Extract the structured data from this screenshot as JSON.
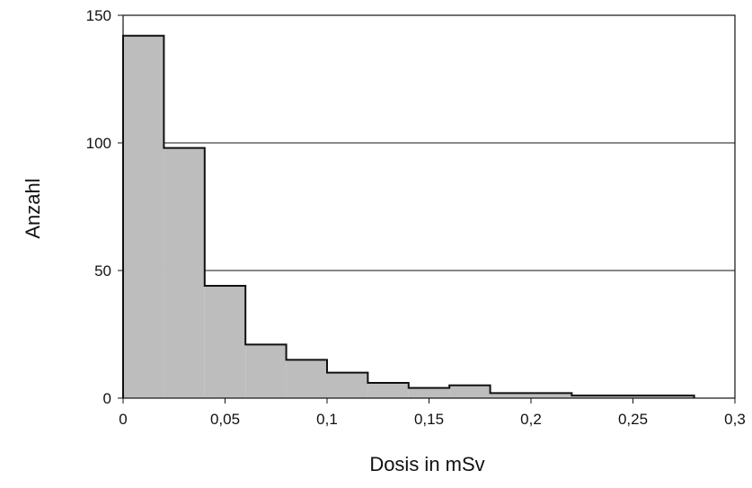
{
  "chart_data": {
    "type": "bar",
    "subtype": "histogram",
    "title": "",
    "xlabel": "Dosis in mSv",
    "ylabel": "Anzahl",
    "xlim": [
      0,
      0.3
    ],
    "ylim": [
      0,
      150
    ],
    "x_ticks": [
      0,
      0.05,
      0.1,
      0.15,
      0.2,
      0.25,
      0.3
    ],
    "x_tick_labels": [
      "0",
      "0,05",
      "0,1",
      "0,15",
      "0,2",
      "0,25",
      "0,3"
    ],
    "y_ticks": [
      0,
      50,
      100,
      150
    ],
    "y_tick_labels": [
      "0",
      "50",
      "100",
      "150"
    ],
    "gridlines_y": [
      50,
      100
    ],
    "bin_width": 0.02,
    "bins": [
      {
        "x0": 0.0,
        "x1": 0.02,
        "value": 142
      },
      {
        "x0": 0.02,
        "x1": 0.04,
        "value": 98
      },
      {
        "x0": 0.04,
        "x1": 0.06,
        "value": 44
      },
      {
        "x0": 0.06,
        "x1": 0.08,
        "value": 21
      },
      {
        "x0": 0.08,
        "x1": 0.1,
        "value": 15
      },
      {
        "x0": 0.1,
        "x1": 0.12,
        "value": 10
      },
      {
        "x0": 0.12,
        "x1": 0.14,
        "value": 6
      },
      {
        "x0": 0.14,
        "x1": 0.16,
        "value": 4
      },
      {
        "x0": 0.16,
        "x1": 0.18,
        "value": 5
      },
      {
        "x0": 0.18,
        "x1": 0.2,
        "value": 2
      },
      {
        "x0": 0.2,
        "x1": 0.22,
        "value": 2
      },
      {
        "x0": 0.22,
        "x1": 0.24,
        "value": 1
      },
      {
        "x0": 0.24,
        "x1": 0.26,
        "value": 1
      },
      {
        "x0": 0.26,
        "x1": 0.28,
        "value": 1
      }
    ],
    "fill_color": "#bdbdbd",
    "edge_color": "#111111"
  }
}
